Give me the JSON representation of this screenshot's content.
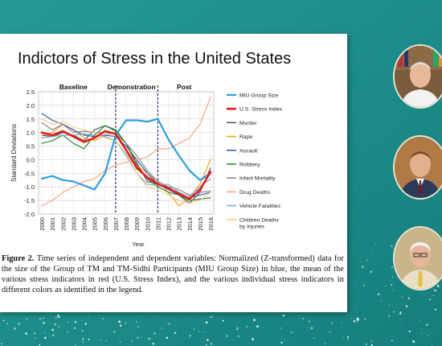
{
  "slide": {
    "title": "Indictors of Stress in the United States",
    "caption_label": "Figure 2.",
    "caption_text": "Time series of independent and dependent variables: Normalized (Z-transformed) data for the size of the Group of TM and TM-Sidhi Participants (MIU Group Size) in blue, the mean of the various stress indicators in red (U.S. Stress Index), and the various individual stress indicators in different colors as identified in the legend."
  },
  "chart_data": {
    "type": "line",
    "xlabel": "Year",
    "ylabel": "Standard Deviations",
    "ylim": [
      -2.0,
      2.5
    ],
    "yticks": [
      "2.5",
      "2.0",
      "1.5",
      "1.0",
      "0.5",
      "0.0",
      "-0.5",
      "-1.0",
      "-1.5",
      "-2.0"
    ],
    "x": [
      "2000",
      "2001",
      "2002",
      "2003",
      "2004",
      "2005",
      "2006",
      "2007",
      "2008",
      "2009",
      "2010",
      "2011",
      "2012",
      "2013",
      "2014",
      "2015",
      "2016"
    ],
    "phases": [
      {
        "label": "Baseline",
        "start": 2000,
        "end": 2006
      },
      {
        "label": "Demonstration",
        "start": 2007,
        "end": 2010
      },
      {
        "label": "Post",
        "start": 2011,
        "end": 2016
      }
    ],
    "dividers": [
      2007,
      2011
    ],
    "grid": true,
    "legend_position": "right",
    "series": [
      {
        "name": "MIU Group Size",
        "color": "#2e9fdc",
        "width": 2.2,
        "values": [
          -0.7,
          -0.6,
          -0.75,
          -0.8,
          -0.95,
          -1.1,
          -0.5,
          0.9,
          1.45,
          1.45,
          1.4,
          1.5,
          0.75,
          0.15,
          -0.4,
          -0.75,
          -0.5
        ]
      },
      {
        "name": "U.S. Stress Index",
        "color": "#e02020",
        "width": 2.6,
        "values": [
          1.0,
          0.9,
          1.05,
          0.85,
          0.65,
          0.8,
          1.05,
          0.95,
          0.35,
          -0.3,
          -0.65,
          -0.9,
          -1.05,
          -1.25,
          -1.45,
          -1.1,
          -0.45
        ]
      },
      {
        "name": "Murder",
        "color": "#555555",
        "width": 1.2,
        "values": [
          0.9,
          0.85,
          1.0,
          0.9,
          0.7,
          1.1,
          1.25,
          1.1,
          0.6,
          -0.1,
          -0.8,
          -0.9,
          -1.0,
          -1.3,
          -1.6,
          -1.2,
          -0.3
        ]
      },
      {
        "name": "Rape",
        "color": "#f2a21e",
        "width": 1.2,
        "values": [
          0.9,
          1.0,
          1.3,
          1.1,
          0.8,
          0.7,
          0.9,
          1.0,
          0.4,
          -0.2,
          -0.5,
          -0.8,
          -1.2,
          -1.7,
          -1.4,
          -0.9,
          0.0
        ]
      },
      {
        "name": "Assault",
        "color": "#3b5bb3",
        "width": 1.2,
        "values": [
          1.7,
          1.45,
          1.3,
          1.1,
          0.9,
          0.85,
          0.9,
          0.85,
          0.5,
          0.0,
          -0.5,
          -0.9,
          -1.1,
          -1.3,
          -1.4,
          -1.3,
          -1.2
        ]
      },
      {
        "name": "Robbery",
        "color": "#2f8a2f",
        "width": 1.2,
        "values": [
          0.6,
          0.7,
          0.9,
          0.6,
          0.4,
          0.9,
          1.25,
          1.05,
          0.6,
          -0.2,
          -0.7,
          -1.0,
          -1.2,
          -1.3,
          -1.5,
          -1.45,
          -1.4
        ]
      },
      {
        "name": "Infant Mortality",
        "color": "#888888",
        "width": 1.2,
        "values": [
          1.35,
          1.1,
          1.3,
          1.0,
          1.05,
          1.0,
          1.0,
          0.95,
          0.6,
          0.15,
          -0.4,
          -0.8,
          -1.0,
          -1.1,
          -1.3,
          -1.2,
          -1.15
        ]
      },
      {
        "name": "Drug Deaths",
        "color": "#f0a58a",
        "width": 1.2,
        "values": [
          -1.7,
          -1.5,
          -1.2,
          -1.0,
          -0.8,
          -0.7,
          -0.4,
          -0.2,
          -0.1,
          0.0,
          0.1,
          0.4,
          0.4,
          0.6,
          0.8,
          1.3,
          2.3
        ]
      },
      {
        "name": "Vehicle Fatalities",
        "color": "#7fa6c9",
        "width": 1.2,
        "values": [
          0.8,
          0.85,
          0.9,
          0.9,
          0.95,
          0.9,
          0.85,
          0.7,
          0.2,
          -0.5,
          -0.9,
          -0.95,
          -0.9,
          -1.2,
          -1.35,
          -1.0,
          -0.7
        ]
      },
      {
        "name": "Children Deaths by Injuries",
        "color": "#f2cf8c",
        "width": 1.2,
        "values": [
          1.5,
          1.3,
          1.4,
          1.2,
          1.1,
          1.0,
          0.8,
          0.7,
          0.1,
          -0.5,
          -1.0,
          -1.1,
          -1.3,
          -1.5,
          -1.6,
          -1.5,
          -1.2
        ]
      }
    ]
  }
}
